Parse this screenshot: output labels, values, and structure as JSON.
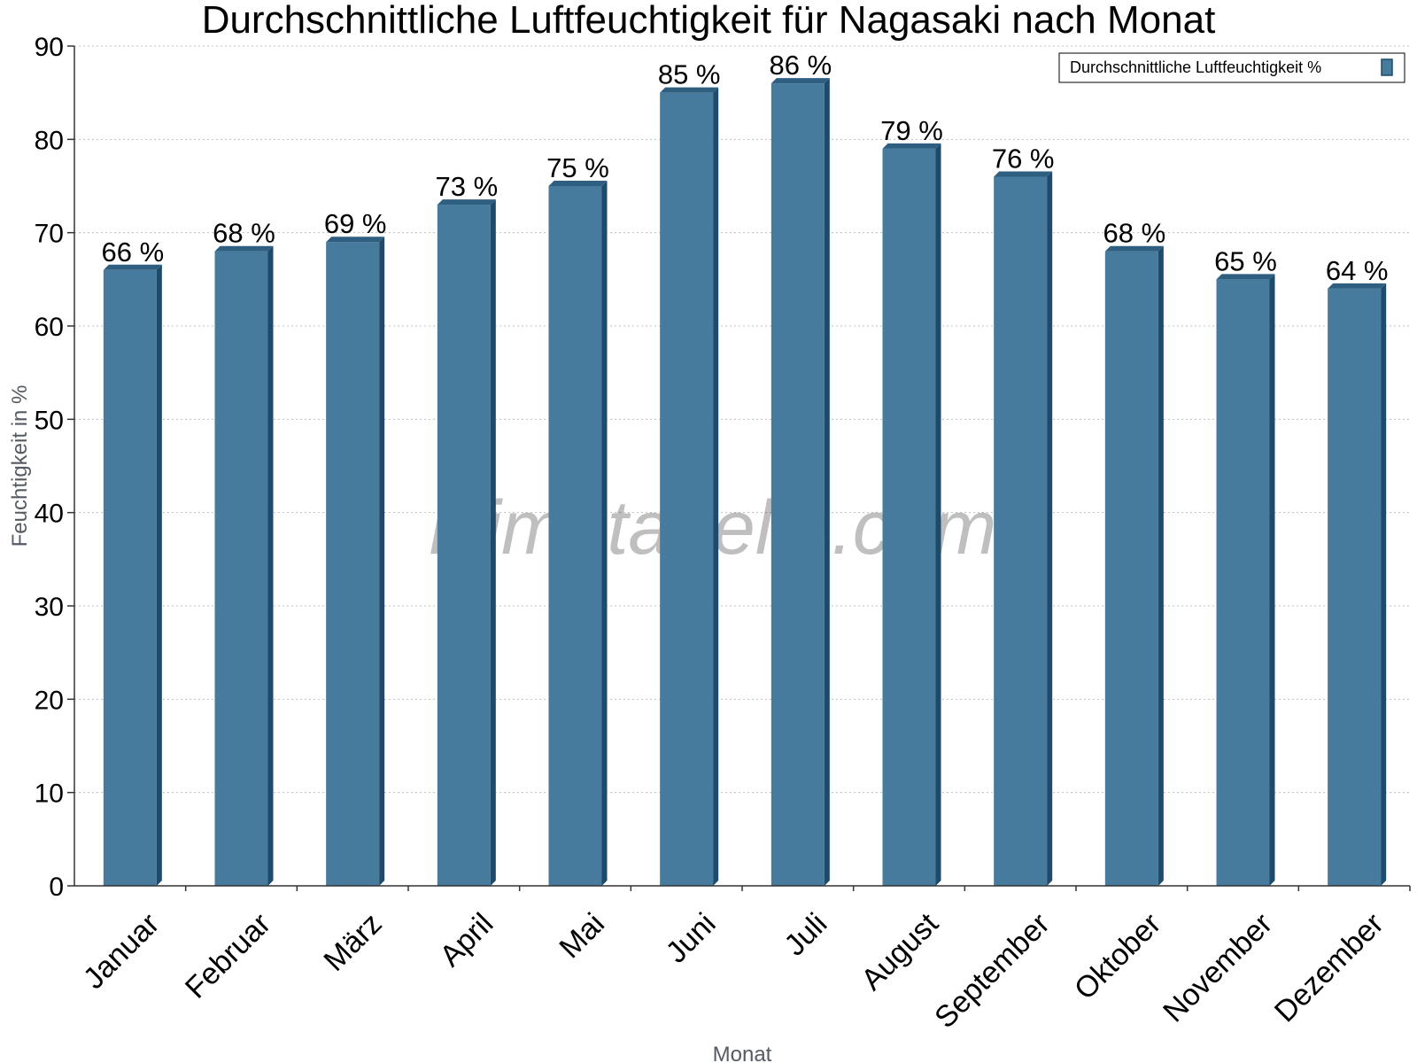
{
  "chart_data": {
    "type": "bar",
    "title": "Durchschnittliche Luftfeuchtigkeit für Nagasaki nach Monat",
    "xlabel": "Monat",
    "ylabel": "Feuchtigkeit in %",
    "ylim": [
      0,
      90
    ],
    "yticks": [
      0,
      10,
      20,
      30,
      40,
      50,
      60,
      70,
      80,
      90
    ],
    "grid": true,
    "legend_position": "top-right",
    "categories": [
      "Januar",
      "Februar",
      "März",
      "April",
      "Mai",
      "Juni",
      "Juli",
      "August",
      "September",
      "Oktober",
      "November",
      "Dezember"
    ],
    "series": [
      {
        "name": "Durchschnittliche Luftfeuchtigkeit %",
        "values": [
          66,
          68,
          69,
          73,
          75,
          85,
          86,
          79,
          76,
          68,
          65,
          64
        ],
        "labels": [
          "66 %",
          "68 %",
          "69 %",
          "73 %",
          "75 %",
          "85 %",
          "86 %",
          "79 %",
          "76 %",
          "68 %",
          "65 %",
          "64 %"
        ]
      }
    ],
    "colors": {
      "bar_front": "#467b9d",
      "bar_side": "#1e4a6b",
      "bar_top": "#2f5f80",
      "grid": "#bfbfbf"
    }
  },
  "watermark": "klimatabelle.com"
}
